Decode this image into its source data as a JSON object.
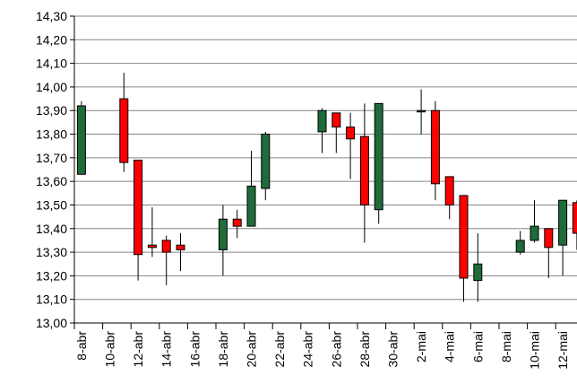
{
  "chart_data": {
    "type": "candlestick",
    "categories": [
      "8-abr",
      null,
      "10-abr",
      null,
      "12-abr",
      null,
      "14-abr",
      null,
      "16-abr",
      null,
      "18-abr",
      null,
      "20-abr",
      null,
      "22-abr",
      null,
      "24-abr",
      null,
      "26-abr",
      null,
      "28-abr",
      null,
      "30-abr",
      null,
      "2-mai",
      null,
      "4-mai",
      null,
      "6-mai",
      null,
      "8-mai",
      null,
      "10-mai",
      null,
      "12-mai",
      null
    ],
    "open": [
      13.63,
      null,
      null,
      13.95,
      13.69,
      13.33,
      13.35,
      13.33,
      null,
      null,
      13.31,
      13.44,
      13.41,
      13.57,
      null,
      null,
      null,
      13.81,
      13.89,
      13.83,
      13.79,
      13.48,
      null,
      null,
      13.9,
      13.9,
      13.62,
      13.54,
      13.18,
      null,
      null,
      13.3,
      13.35,
      13.4,
      13.33,
      13.51
    ],
    "high": [
      13.94,
      null,
      null,
      14.06,
      13.69,
      13.49,
      13.37,
      13.38,
      null,
      null,
      13.5,
      13.48,
      13.73,
      13.81,
      null,
      null,
      null,
      13.91,
      13.89,
      13.89,
      13.93,
      13.93,
      null,
      null,
      13.99,
      13.94,
      13.62,
      13.54,
      13.38,
      null,
      null,
      13.39,
      13.52,
      13.4,
      13.52,
      13.52
    ],
    "low": [
      13.63,
      null,
      null,
      13.64,
      13.18,
      13.28,
      13.16,
      13.22,
      null,
      null,
      13.2,
      13.36,
      13.41,
      13.52,
      null,
      null,
      null,
      13.72,
      13.72,
      13.61,
      13.34,
      13.42,
      null,
      null,
      13.8,
      13.52,
      13.44,
      13.09,
      13.09,
      null,
      null,
      13.29,
      13.34,
      13.19,
      13.2,
      13.31
    ],
    "close": [
      13.92,
      null,
      null,
      13.68,
      13.29,
      13.32,
      13.3,
      13.31,
      null,
      null,
      13.44,
      13.41,
      13.58,
      13.8,
      null,
      null,
      null,
      13.9,
      13.83,
      13.78,
      13.5,
      13.93,
      null,
      null,
      13.9,
      13.59,
      13.5,
      13.19,
      13.25,
      null,
      null,
      13.35,
      13.41,
      13.32,
      13.52,
      13.38
    ],
    "up_color": "#1f6b3a",
    "down_color": "#ff0000",
    "ylim": [
      13.0,
      14.3
    ],
    "yticks": [
      {
        "value": 13.0,
        "label": "13,00"
      },
      {
        "value": 13.1,
        "label": "13,10"
      },
      {
        "value": 13.2,
        "label": "13,20"
      },
      {
        "value": 13.3,
        "label": "13,30"
      },
      {
        "value": 13.4,
        "label": "13,40"
      },
      {
        "value": 13.5,
        "label": "13,50"
      },
      {
        "value": 13.6,
        "label": "13,60"
      },
      {
        "value": 13.7,
        "label": "13,70"
      },
      {
        "value": 13.8,
        "label": "13,80"
      },
      {
        "value": 13.9,
        "label": "13,90"
      },
      {
        "value": 14.0,
        "label": "14,00"
      },
      {
        "value": 14.1,
        "label": "14,10"
      },
      {
        "value": 14.2,
        "label": "14,20"
      },
      {
        "value": 14.3,
        "label": "14,30"
      }
    ],
    "grid": true
  }
}
